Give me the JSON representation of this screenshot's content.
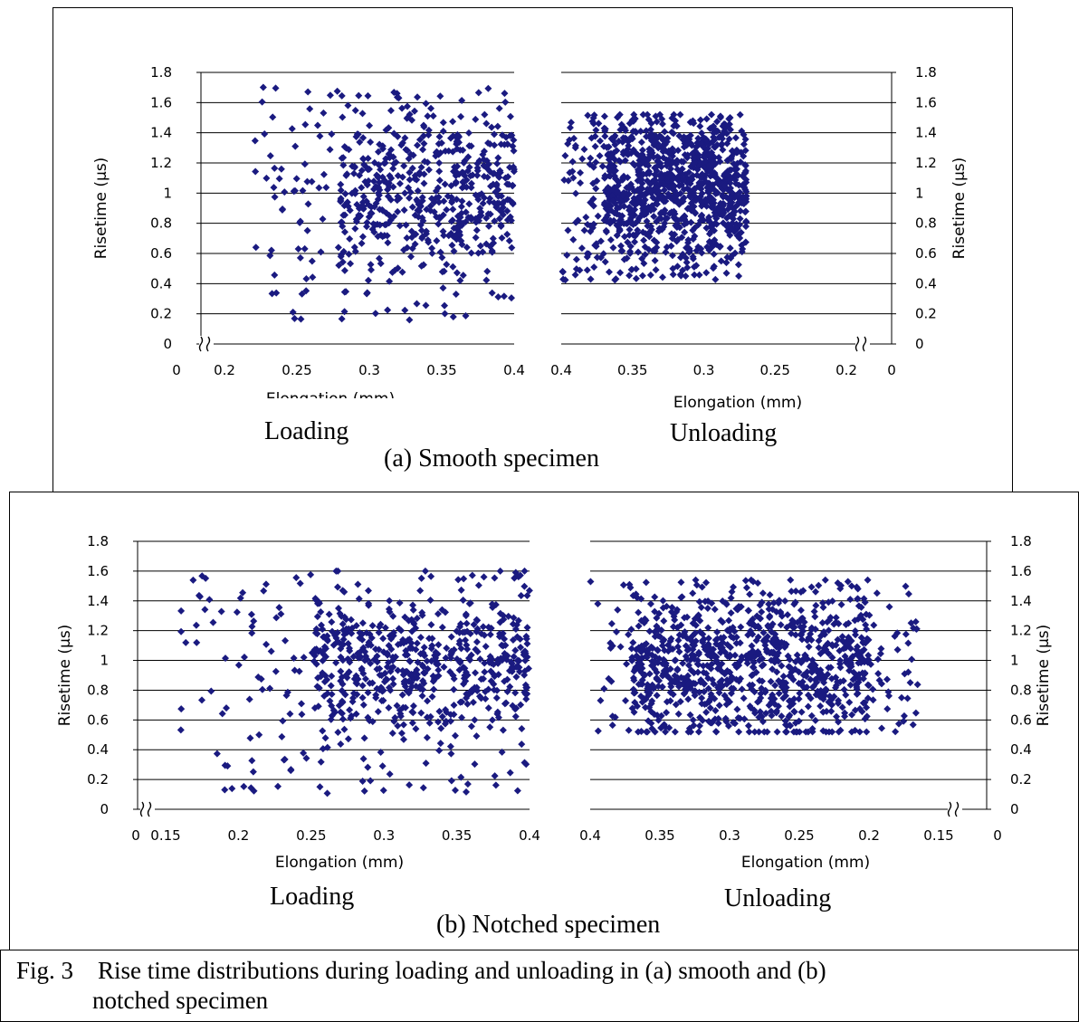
{
  "panels": [
    {
      "caption": "(a) Smooth specimen",
      "loading_label": "Loading",
      "unloading_label": "Unloading"
    },
    {
      "caption": "(b) Notched specimen",
      "loading_label": "Loading",
      "unloading_label": "Unloading"
    }
  ],
  "figure_caption_line1": "Fig. 3    Rise time distributions during loading and unloading in (a) smooth and (b)",
  "figure_caption_line2": "notched specimen",
  "marker_color": "#1a1a80",
  "chart_data": [
    {
      "type": "scatter",
      "panel": "(a) Smooth specimen",
      "title": "Loading",
      "xlabel": "Elongation (mm)",
      "ylabel": "Risetime (μs)",
      "ylim": [
        0,
        1.8
      ],
      "yticks": [
        "0",
        "0.2",
        "0.4",
        "0.6",
        "0.8",
        "1",
        "1.2",
        "1.4",
        "1.6",
        "1.8"
      ],
      "x_axis_break": true,
      "xticks": [
        "0",
        "0.2",
        "0.25",
        "0.3",
        "0.35",
        "0.4"
      ],
      "x_range_after_break": [
        0.2,
        0.4
      ],
      "x_reversed": false,
      "grid": true,
      "points_summary": {
        "x_range": [
          0.22,
          0.4
        ],
        "y_range": [
          0.16,
          1.72
        ],
        "dense_region_x": [
          0.28,
          0.4
        ],
        "dense_region_y": [
          0.6,
          1.4
        ],
        "approx_count": 620
      }
    },
    {
      "type": "scatter",
      "panel": "(a) Smooth specimen",
      "title": "Unloading",
      "xlabel": "Elongation (mm)",
      "ylabel": "Risetime (μs)",
      "ylim": [
        0,
        1.8
      ],
      "yticks": [
        "0",
        "0.2",
        "0.4",
        "0.6",
        "0.8",
        "1",
        "1.2",
        "1.4",
        "1.6",
        "1.8"
      ],
      "x_axis_break": true,
      "xticks": [
        "0.4",
        "0.35",
        "0.3",
        "0.25",
        "0.2",
        "0"
      ],
      "x_range_after_break": [
        0.4,
        0.2
      ],
      "x_reversed": true,
      "grid": true,
      "points_summary": {
        "x_range": [
          0.4,
          0.27
        ],
        "y_range": [
          0.42,
          1.52
        ],
        "dense_region_x": [
          0.37,
          0.27
        ],
        "dense_region_y": [
          0.7,
          1.35
        ],
        "approx_count": 1100
      }
    },
    {
      "type": "scatter",
      "panel": "(b) Notched specimen",
      "title": "Loading",
      "xlabel": "Elongation (mm)",
      "ylabel": "Risetime (μs)",
      "ylim": [
        0,
        1.8
      ],
      "yticks": [
        "0",
        "0.2",
        "0.4",
        "0.6",
        "0.8",
        "1",
        "1.2",
        "1.4",
        "1.6",
        "1.8"
      ],
      "x_axis_break": true,
      "xticks": [
        "0",
        "0.15",
        "0.2",
        "0.25",
        "0.3",
        "0.35",
        "0.4"
      ],
      "x_range_after_break": [
        0.15,
        0.4
      ],
      "x_reversed": false,
      "grid": true,
      "points_summary": {
        "x_range": [
          0.16,
          0.4
        ],
        "y_range": [
          0.08,
          1.6
        ],
        "dense_region_x": [
          0.25,
          0.4
        ],
        "dense_region_y": [
          0.6,
          1.35
        ],
        "approx_count": 700
      }
    },
    {
      "type": "scatter",
      "panel": "(b) Notched specimen",
      "title": "Unloading",
      "xlabel": "Elongation (mm)",
      "ylabel": "Risetime (μs)",
      "ylim": [
        0,
        1.8
      ],
      "yticks": [
        "0",
        "0.2",
        "0.4",
        "0.6",
        "0.8",
        "1",
        "1.2",
        "1.4",
        "1.6",
        "1.8"
      ],
      "x_axis_break": true,
      "xticks": [
        "0.4",
        "0.35",
        "0.3",
        "0.25",
        "0.2",
        "0.15",
        "0"
      ],
      "x_range_after_break": [
        0.4,
        0.15
      ],
      "x_reversed": true,
      "grid": true,
      "points_summary": {
        "x_range": [
          0.4,
          0.165
        ],
        "y_range": [
          0.52,
          1.54
        ],
        "dense_region_x": [
          0.37,
          0.2
        ],
        "dense_region_y": [
          0.6,
          1.35
        ],
        "approx_count": 1000
      }
    }
  ]
}
